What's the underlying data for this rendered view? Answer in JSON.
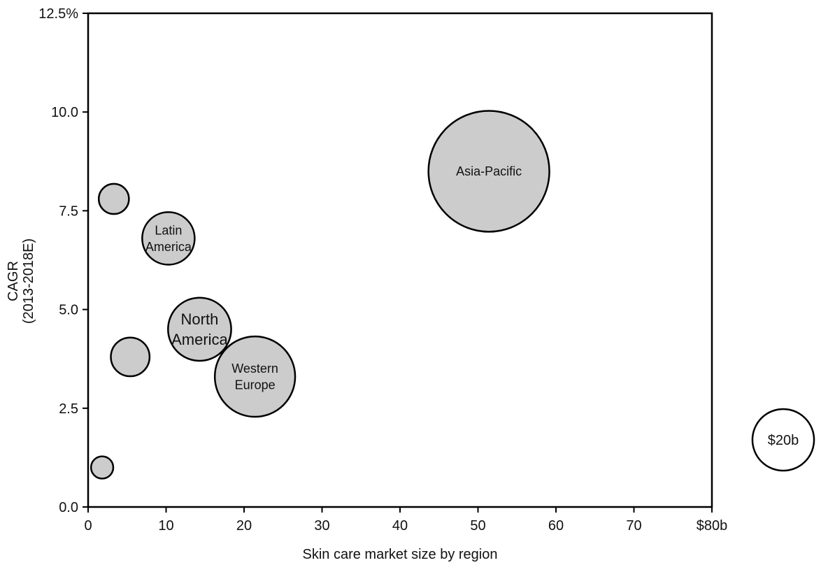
{
  "chart_data": {
    "type": "scatter",
    "variant": "bubble",
    "title": "",
    "xlabel": "Skin care market size by region",
    "ylabel": [
      "CAGR",
      "(2013-2018E)"
    ],
    "xlim": [
      0,
      80
    ],
    "ylim": [
      0,
      12.5
    ],
    "x_ticks": [
      0,
      10,
      20,
      30,
      40,
      50,
      60,
      70,
      80
    ],
    "x_tick_labels": [
      "0",
      "10",
      "20",
      "30",
      "40",
      "50",
      "60",
      "70",
      "$80b"
    ],
    "y_ticks": [
      0,
      2.5,
      5,
      7.5,
      10,
      12.5
    ],
    "y_tick_labels": [
      "0.0",
      "2.5",
      "5.0",
      "7.5",
      "10.0",
      "12.5%"
    ],
    "grid": false,
    "bubble_fill": "#cccccc",
    "bubble_stroke": "#000000",
    "points": [
      {
        "label": "",
        "x": 1.8,
        "y": 1.0,
        "size": 2.6
      },
      {
        "label": "",
        "x": 3.3,
        "y": 7.8,
        "size": 4.8
      },
      {
        "label": "",
        "x": 5.4,
        "y": 3.8,
        "size": 7.9
      },
      {
        "label": "Latin\nAmerica",
        "x": 10.3,
        "y": 6.8,
        "size": 14.5
      },
      {
        "label": "North\nAmerica",
        "x": 14.3,
        "y": 4.5,
        "size": 21.0
      },
      {
        "label": "Western\nEurope",
        "x": 21.4,
        "y": 3.3,
        "size": 34.0
      },
      {
        "label": "Asia-Pacific",
        "x": 51.4,
        "y": 8.5,
        "size": 77.0
      }
    ],
    "size_legend": {
      "label": "$20b",
      "size": 20
    }
  }
}
